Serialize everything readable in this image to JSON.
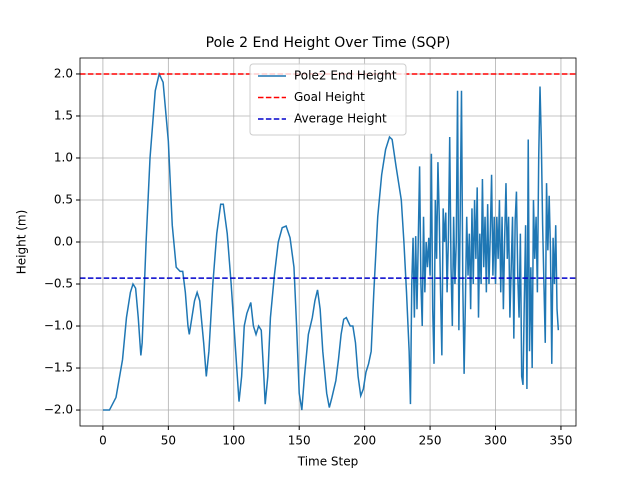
{
  "chart_data": {
    "type": "line",
    "title": "Pole 2 End Height Over Time (SQP)",
    "x_label": "Time Step",
    "y_label": "Height (m)",
    "xlim": [
      -17.5,
      361.5
    ],
    "ylim": [
      -2.19,
      2.19
    ],
    "xticks": [
      0,
      50,
      100,
      150,
      200,
      250,
      300,
      350
    ],
    "yticks": [
      {
        "value": -2,
        "label": "−2.0"
      },
      {
        "value": -1.5,
        "label": "−1.5"
      },
      {
        "value": -1,
        "label": "−1.0"
      },
      {
        "value": -0.5,
        "label": "−0.5"
      },
      {
        "value": 0,
        "label": "0.0"
      },
      {
        "value": 0.5,
        "label": "0.5"
      },
      {
        "value": 1,
        "label": "1.0"
      },
      {
        "value": 1.5,
        "label": "1.5"
      },
      {
        "value": 2,
        "label": "2.0"
      }
    ],
    "grid": true,
    "legend": "upper center",
    "x": [
      0,
      5,
      10,
      15,
      18,
      21,
      23,
      25,
      27,
      29,
      30,
      33,
      36,
      40,
      43,
      46,
      50,
      53,
      56,
      59,
      61,
      63,
      65,
      66,
      68,
      70,
      72,
      74,
      77,
      79,
      81,
      84,
      87,
      90,
      92,
      95,
      98,
      101,
      104,
      106,
      108,
      110,
      113,
      115,
      117,
      119,
      121,
      123,
      124,
      126,
      128,
      131,
      134,
      137,
      140,
      143,
      146,
      148,
      150,
      152,
      154,
      157,
      160,
      162,
      164,
      166,
      168,
      171,
      173,
      175,
      178,
      180,
      182,
      184,
      186,
      189,
      191,
      193,
      195,
      197,
      199,
      201,
      203,
      205,
      207,
      210,
      213,
      216,
      219,
      221,
      224,
      226,
      228,
      230,
      232,
      234,
      235,
      236,
      237,
      238,
      239,
      240,
      242,
      243,
      244,
      245,
      246,
      247,
      248,
      249,
      250,
      251,
      252,
      253,
      254,
      255,
      256,
      257,
      258,
      259,
      260,
      261,
      262,
      263,
      264,
      265,
      266,
      267,
      268,
      269,
      270,
      271,
      272,
      273,
      274,
      275,
      276,
      277,
      278,
      279,
      280,
      281,
      282,
      283,
      284,
      285,
      286,
      287,
      288,
      289,
      290,
      291,
      292,
      293,
      294,
      295,
      296,
      297,
      298,
      299,
      300,
      301,
      302,
      303,
      304,
      305,
      306,
      307,
      308,
      309,
      310,
      311,
      312,
      313,
      314,
      315,
      316,
      317,
      318,
      319,
      320,
      321,
      322,
      323,
      324,
      325,
      326,
      327,
      328,
      329,
      330,
      331,
      332,
      333,
      334,
      335,
      336,
      337,
      338,
      339,
      340,
      341,
      342,
      343,
      344,
      345,
      346,
      347,
      348
    ],
    "series": [
      {
        "name": "Pole2 End Height",
        "color": "#1f77b4",
        "values": [
          -2.0,
          -2.0,
          -1.85,
          -1.4,
          -0.9,
          -0.6,
          -0.5,
          -0.55,
          -0.9,
          -1.35,
          -1.2,
          0.0,
          1.0,
          1.8,
          2.0,
          1.9,
          1.2,
          0.2,
          -0.3,
          -0.35,
          -0.35,
          -0.6,
          -1.0,
          -1.1,
          -0.9,
          -0.7,
          -0.6,
          -0.7,
          -1.2,
          -1.6,
          -1.3,
          -0.5,
          0.1,
          0.45,
          0.45,
          0.1,
          -0.5,
          -1.2,
          -1.9,
          -1.6,
          -1.0,
          -0.85,
          -0.72,
          -1.0,
          -1.1,
          -1.0,
          -1.05,
          -1.6,
          -1.93,
          -1.6,
          -0.9,
          -0.4,
          0.0,
          0.17,
          0.19,
          0.05,
          -0.3,
          -1.0,
          -1.8,
          -2.0,
          -1.6,
          -1.1,
          -0.9,
          -0.7,
          -0.57,
          -0.8,
          -1.3,
          -1.8,
          -1.97,
          -1.85,
          -1.65,
          -1.4,
          -1.1,
          -0.92,
          -0.9,
          -1.0,
          -1.0,
          -1.2,
          -1.6,
          -1.83,
          -1.75,
          -1.55,
          -1.45,
          -1.3,
          -0.6,
          0.3,
          0.8,
          1.1,
          1.25,
          1.22,
          0.9,
          0.7,
          0.5,
          0.0,
          -0.6,
          -1.3,
          -1.93,
          -0.5,
          0.05,
          -0.9,
          0.07,
          -0.8,
          0.9,
          -0.5,
          -1.0,
          0.3,
          -0.6,
          0.0,
          -0.3,
          0.05,
          -0.4,
          1.05,
          -0.8,
          -1.45,
          0.5,
          -0.2,
          0.95,
          0.3,
          -0.6,
          -1.35,
          0.4,
          0.0,
          0.35,
          -0.6,
          0.05,
          1.25,
          -0.3,
          -1.0,
          0.3,
          -0.5,
          0.0,
          1.8,
          -1.05,
          0.3,
          1.8,
          -0.5,
          -1.57,
          -0.7,
          0.3,
          -0.4,
          0.1,
          -0.8,
          0.4,
          -0.5,
          0.5,
          -0.2,
          0.65,
          -0.9,
          0.1,
          -0.5,
          0.75,
          -0.3,
          0.3,
          -0.6,
          0.45,
          -0.5,
          0.1,
          0.8,
          -0.4,
          0.3,
          -0.5,
          0.3,
          -0.2,
          0.5,
          -0.6,
          0.3,
          -0.8,
          0.05,
          0.7,
          -0.2,
          0.3,
          -0.9,
          -0.3,
          0.3,
          -1.15,
          0.25,
          0.6,
          -0.4,
          -0.9,
          0.1,
          -1.6,
          -1.7,
          -0.7,
          0.2,
          -1.75,
          1.22,
          -1.3,
          -0.3,
          -1.5,
          0.5,
          -0.2,
          0.3,
          -0.6,
          1.0,
          1.85,
          1.2,
          0.2,
          -0.5,
          -1.2,
          0.7,
          -0.1,
          0.55,
          -0.1,
          -1.45,
          0.05,
          -0.5,
          0.2,
          -0.8,
          -1.05
        ]
      }
    ],
    "reference_lines": [
      {
        "name": "Goal Height",
        "value": 2.0,
        "color": "#ff0000"
      },
      {
        "name": "Average Height",
        "value": -0.43,
        "color": "#0000cc"
      }
    ]
  }
}
